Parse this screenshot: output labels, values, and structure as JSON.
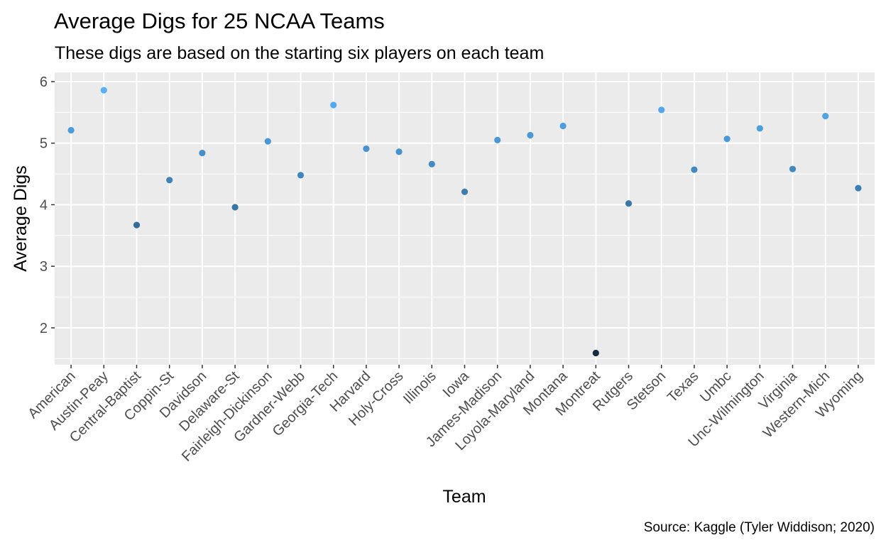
{
  "chart_data": {
    "type": "scatter",
    "title": "Average Digs for 25 NCAA Teams",
    "subtitle": "These digs are based on the starting six players on each team",
    "caption": "Source: Kaggle (Tyler Widdison; 2020)",
    "xlabel": "Team",
    "ylabel": "Average Digs",
    "categories": [
      "American",
      "Austin-Peay",
      "Central-Baptist",
      "Coppin-St",
      "Davidson",
      "Delaware-St",
      "Fairleigh-Dickinson",
      "Gardner-Webb",
      "Georgia-Tech",
      "Harvard",
      "Holy-Cross",
      "Illinois",
      "Iowa",
      "James-Madison",
      "Loyola-Maryland",
      "Montana",
      "Montreat",
      "Rutgers",
      "Stetson",
      "Texas",
      "Umbc",
      "Unc-Wilmington",
      "Virginia",
      "Western-Mich",
      "Wyoming"
    ],
    "values": [
      5.21,
      5.86,
      3.67,
      4.4,
      4.84,
      3.96,
      5.03,
      4.48,
      5.62,
      4.91,
      4.86,
      4.66,
      4.21,
      5.05,
      5.13,
      5.28,
      1.59,
      4.02,
      5.54,
      4.57,
      5.07,
      5.24,
      4.58,
      5.44,
      4.27
    ],
    "ylim": [
      1.4,
      6.15
    ],
    "yticks": [
      2,
      3,
      4,
      5,
      6
    ],
    "grid": true,
    "legend": "none",
    "color_scale": {
      "low": "#132B43",
      "high": "#56B1F7"
    },
    "panel_background": "#EBEBEB",
    "grid_color": "#FFFFFF"
  }
}
